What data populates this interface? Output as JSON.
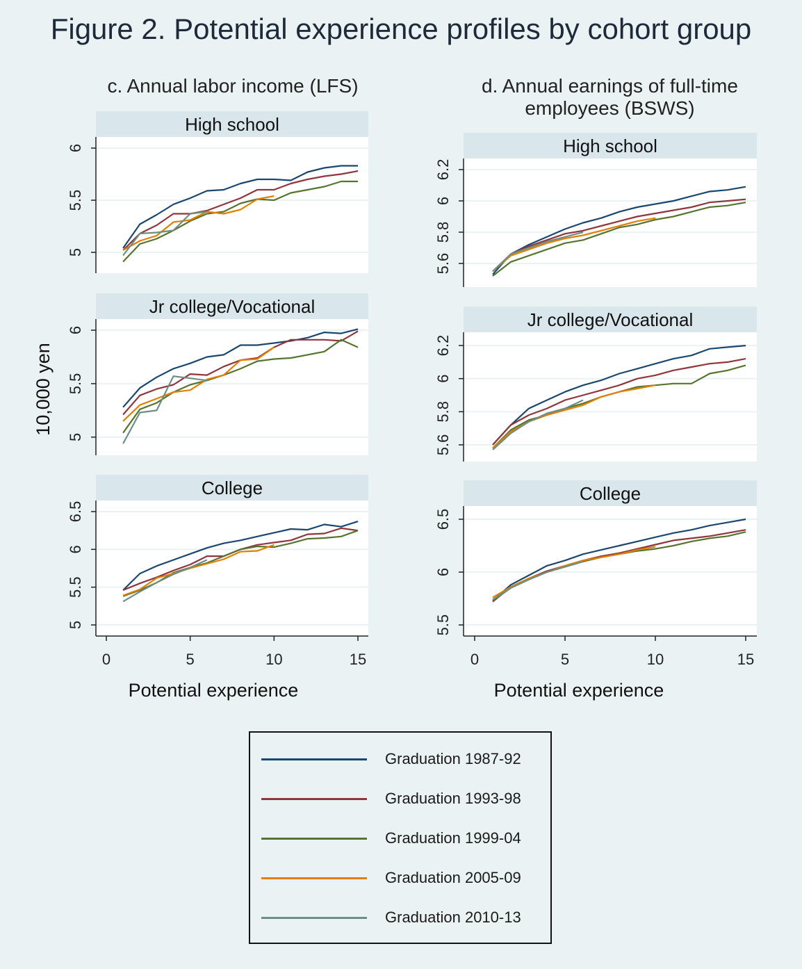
{
  "title": "Figure 2. Potential experience profiles by cohort group",
  "ylabel": "10,000 yen",
  "legend": [
    {
      "name": "Graduation 1987-92",
      "color": "#1a476f"
    },
    {
      "name": "Graduation 1993-98",
      "color": "#90353b"
    },
    {
      "name": "Graduation 1999-04",
      "color": "#55752f"
    },
    {
      "name": "Graduation 2005-09",
      "color": "#e37e00"
    },
    {
      "name": "Graduation 2010-13",
      "color": "#6e8e84"
    }
  ],
  "colors": {
    "background": "#eaf2f3",
    "strip": "#d9e6eb",
    "plot": "#ffffff",
    "grid": "#eaf2f3"
  },
  "columns": [
    {
      "title": "c. Annual labor income (LFS)",
      "xlabel": "Potential experience"
    },
    {
      "title_line1": "d. Annual earnings of full-time",
      "title_line2": "employees (BSWS)",
      "xlabel": "Potential experience"
    }
  ],
  "chart_data": [
    {
      "type": "line",
      "column": "c. Annual labor income (LFS)",
      "panel": "High school",
      "xlabel": "Potential experience",
      "ylabel": "10,000 yen",
      "xticks": [
        0,
        5,
        10,
        15
      ],
      "yticks": [
        5,
        5.5,
        6
      ],
      "ytick_labels": [
        "5",
        "5.5",
        "6"
      ],
      "series": [
        {
          "name": "Graduation 1987-92",
          "x": [
            1,
            2,
            3,
            4,
            5,
            6,
            7,
            8,
            9,
            10,
            11,
            12,
            13,
            14,
            15
          ],
          "y": [
            5.04,
            5.27,
            5.36,
            5.46,
            5.52,
            5.59,
            5.6,
            5.66,
            5.7,
            5.7,
            5.69,
            5.77,
            5.81,
            5.83,
            5.83
          ]
        },
        {
          "name": "Graduation 1993-98",
          "x": [
            1,
            2,
            3,
            4,
            5,
            6,
            7,
            8,
            9,
            10,
            11,
            12,
            13,
            14,
            15
          ],
          "y": [
            5.02,
            5.18,
            5.26,
            5.37,
            5.37,
            5.4,
            5.46,
            5.52,
            5.6,
            5.6,
            5.66,
            5.7,
            5.73,
            5.75,
            5.78
          ]
        },
        {
          "name": "Graduation 1999-04",
          "x": [
            1,
            2,
            3,
            4,
            5,
            6,
            7,
            8,
            9,
            10,
            11,
            12,
            13,
            14,
            15
          ],
          "y": [
            4.91,
            5.08,
            5.13,
            5.21,
            5.3,
            5.37,
            5.39,
            5.47,
            5.51,
            5.5,
            5.57,
            5.6,
            5.63,
            5.68,
            5.68
          ]
        },
        {
          "name": "Graduation 2005-09",
          "x": [
            1,
            2,
            3,
            4,
            5,
            6,
            7,
            8,
            9,
            10
          ],
          "y": [
            5.02,
            5.11,
            5.16,
            5.29,
            5.31,
            5.39,
            5.37,
            5.41,
            5.51,
            5.54
          ]
        },
        {
          "name": "Graduation 2010-13",
          "x": [
            1,
            2,
            3,
            4,
            5,
            6
          ],
          "y": [
            4.97,
            5.18,
            5.19,
            5.21,
            5.37,
            5.39
          ]
        }
      ]
    },
    {
      "type": "line",
      "column": "c. Annual labor income (LFS)",
      "panel": "Jr college/Vocational",
      "xlabel": "Potential experience",
      "ylabel": "10,000 yen",
      "xticks": [
        0,
        5,
        10,
        15
      ],
      "yticks": [
        5,
        5.5,
        6
      ],
      "ytick_labels": [
        "5",
        "5.5",
        "6"
      ],
      "series": [
        {
          "name": "Graduation 1987-92",
          "x": [
            1,
            2,
            3,
            4,
            5,
            6,
            7,
            8,
            9,
            10,
            11,
            12,
            13,
            14,
            15
          ],
          "y": [
            5.28,
            5.46,
            5.56,
            5.64,
            5.69,
            5.75,
            5.77,
            5.86,
            5.86,
            5.88,
            5.9,
            5.93,
            5.98,
            5.97,
            6.01
          ]
        },
        {
          "name": "Graduation 1993-98",
          "x": [
            1,
            2,
            3,
            4,
            5,
            6,
            7,
            8,
            9,
            10,
            11,
            12,
            13,
            14,
            15
          ],
          "y": [
            5.21,
            5.39,
            5.45,
            5.49,
            5.59,
            5.58,
            5.66,
            5.72,
            5.74,
            5.84,
            5.91,
            5.91,
            5.91,
            5.9,
            5.99
          ]
        },
        {
          "name": "Graduation 1999-04",
          "x": [
            1,
            2,
            3,
            4,
            5,
            6,
            7,
            8,
            9,
            10,
            11,
            12,
            13,
            14,
            15
          ],
          "y": [
            5.04,
            5.26,
            5.32,
            5.42,
            5.49,
            5.53,
            5.58,
            5.64,
            5.71,
            5.73,
            5.74,
            5.77,
            5.8,
            5.91,
            5.84
          ]
        },
        {
          "name": "Graduation 2005-09",
          "x": [
            1,
            2,
            3,
            4,
            5,
            6,
            7,
            8,
            9,
            10
          ],
          "y": [
            5.15,
            5.3,
            5.36,
            5.42,
            5.44,
            5.54,
            5.58,
            5.72,
            5.73,
            5.84
          ]
        },
        {
          "name": "Graduation 2010-13",
          "x": [
            1,
            2,
            3,
            4,
            5,
            6
          ],
          "y": [
            4.94,
            5.23,
            5.25,
            5.57,
            5.55,
            5.53
          ]
        }
      ]
    },
    {
      "type": "line",
      "column": "c. Annual labor income (LFS)",
      "panel": "College",
      "xlabel": "Potential experience",
      "ylabel": "10,000 yen",
      "xticks": [
        0,
        5,
        10,
        15
      ],
      "yticks": [
        5,
        5.5,
        6,
        6.5
      ],
      "ytick_labels": [
        "5",
        "5.5",
        "6",
        "6.5"
      ],
      "series": [
        {
          "name": "Graduation 1987-92",
          "x": [
            1,
            2,
            3,
            4,
            5,
            6,
            7,
            8,
            9,
            10,
            11,
            12,
            13,
            14,
            15
          ],
          "y": [
            5.46,
            5.68,
            5.78,
            5.86,
            5.94,
            6.02,
            6.08,
            6.12,
            6.17,
            6.22,
            6.27,
            6.26,
            6.33,
            6.3,
            6.37
          ]
        },
        {
          "name": "Graduation 1993-98",
          "x": [
            1,
            2,
            3,
            4,
            5,
            6,
            7,
            8,
            9,
            10,
            11,
            12,
            13,
            14,
            15
          ],
          "y": [
            5.46,
            5.55,
            5.63,
            5.72,
            5.8,
            5.91,
            5.91,
            6.0,
            6.06,
            6.09,
            6.12,
            6.2,
            6.21,
            6.28,
            6.25
          ]
        },
        {
          "name": "Graduation 1999-04",
          "x": [
            1,
            2,
            3,
            4,
            5,
            6,
            7,
            8,
            9,
            10,
            11,
            12,
            13,
            14,
            15
          ],
          "y": [
            5.38,
            5.46,
            5.56,
            5.69,
            5.76,
            5.82,
            5.91,
            6.0,
            6.04,
            6.03,
            6.08,
            6.14,
            6.15,
            6.17,
            6.25
          ]
        },
        {
          "name": "Graduation 2005-09",
          "x": [
            1,
            2,
            3,
            4,
            5,
            6,
            7,
            8,
            9,
            10
          ],
          "y": [
            5.39,
            5.47,
            5.62,
            5.68,
            5.75,
            5.81,
            5.87,
            5.97,
            5.98,
            6.06
          ]
        },
        {
          "name": "Graduation 2010-13",
          "x": [
            1,
            2,
            3,
            4,
            5,
            6
          ],
          "y": [
            5.31,
            5.44,
            5.56,
            5.67,
            5.76,
            5.86
          ]
        }
      ]
    },
    {
      "type": "line",
      "column": "d. Annual earnings of full-time employees (BSWS)",
      "panel": "High school",
      "xlabel": "Potential experience",
      "xticks": [
        0,
        5,
        10,
        15
      ],
      "yticks": [
        5.6,
        5.8,
        6,
        6.2
      ],
      "ytick_labels": [
        "5.6",
        "5.8",
        "6",
        "6.2"
      ],
      "series": [
        {
          "name": "Graduation 1987-92",
          "x": [
            1,
            2,
            3,
            4,
            5,
            6,
            7,
            8,
            9,
            10,
            11,
            12,
            13,
            14,
            15
          ],
          "y": [
            5.53,
            5.66,
            5.72,
            5.77,
            5.82,
            5.86,
            5.89,
            5.93,
            5.96,
            5.98,
            6.0,
            6.03,
            6.06,
            6.07,
            6.09
          ]
        },
        {
          "name": "Graduation 1993-98",
          "x": [
            1,
            2,
            3,
            4,
            5,
            6,
            7,
            8,
            9,
            10,
            11,
            12,
            13,
            14,
            15
          ],
          "y": [
            5.55,
            5.66,
            5.71,
            5.75,
            5.79,
            5.81,
            5.84,
            5.87,
            5.9,
            5.92,
            5.94,
            5.96,
            5.99,
            6.0,
            6.01
          ]
        },
        {
          "name": "Graduation 1999-04",
          "x": [
            1,
            2,
            3,
            4,
            5,
            6,
            7,
            8,
            9,
            10,
            11,
            12,
            13,
            14,
            15
          ],
          "y": [
            5.52,
            5.61,
            5.65,
            5.69,
            5.73,
            5.75,
            5.79,
            5.83,
            5.85,
            5.88,
            5.9,
            5.93,
            5.96,
            5.97,
            5.99
          ]
        },
        {
          "name": "Graduation 2005-09",
          "x": [
            1,
            2,
            3,
            4,
            5,
            6,
            7,
            8,
            9,
            10
          ],
          "y": [
            5.55,
            5.65,
            5.69,
            5.73,
            5.76,
            5.78,
            5.81,
            5.84,
            5.87,
            5.89
          ]
        },
        {
          "name": "Graduation 2010-13",
          "x": [
            1,
            2,
            3,
            4,
            5,
            6
          ],
          "y": [
            5.55,
            5.66,
            5.7,
            5.74,
            5.77,
            5.8
          ]
        }
      ]
    },
    {
      "type": "line",
      "column": "d. Annual earnings of full-time employees (BSWS)",
      "panel": "Jr college/Vocational",
      "xlabel": "Potential experience",
      "xticks": [
        0,
        5,
        10,
        15
      ],
      "yticks": [
        5.6,
        5.8,
        6,
        6.2
      ],
      "ytick_labels": [
        "5.6",
        "5.8",
        "6",
        "6.2"
      ],
      "series": [
        {
          "name": "Graduation 1987-92",
          "x": [
            1,
            2,
            3,
            4,
            5,
            6,
            7,
            8,
            9,
            10,
            11,
            12,
            13,
            14,
            15
          ],
          "y": [
            5.6,
            5.72,
            5.82,
            5.87,
            5.92,
            5.96,
            5.99,
            6.03,
            6.06,
            6.09,
            6.12,
            6.14,
            6.18,
            6.19,
            6.2
          ]
        },
        {
          "name": "Graduation 1993-98",
          "x": [
            1,
            2,
            3,
            4,
            5,
            6,
            7,
            8,
            9,
            10,
            11,
            12,
            13,
            14,
            15
          ],
          "y": [
            5.6,
            5.72,
            5.78,
            5.82,
            5.87,
            5.9,
            5.93,
            5.96,
            6.0,
            6.02,
            6.05,
            6.07,
            6.09,
            6.1,
            6.12
          ]
        },
        {
          "name": "Graduation 1999-04",
          "x": [
            1,
            2,
            3,
            4,
            5,
            6,
            7,
            8,
            9,
            10,
            11,
            12,
            13,
            14,
            15
          ],
          "y": [
            5.58,
            5.69,
            5.75,
            5.78,
            5.82,
            5.85,
            5.89,
            5.92,
            5.95,
            5.96,
            5.97,
            5.97,
            6.03,
            6.05,
            6.08
          ]
        },
        {
          "name": "Graduation 2005-09",
          "x": [
            1,
            2,
            3,
            4,
            5,
            6,
            7,
            8,
            9,
            10
          ],
          "y": [
            5.58,
            5.68,
            5.74,
            5.78,
            5.81,
            5.84,
            5.89,
            5.92,
            5.94,
            5.96
          ]
        },
        {
          "name": "Graduation 2010-13",
          "x": [
            1,
            2,
            3,
            4,
            5,
            6
          ],
          "y": [
            5.57,
            5.67,
            5.74,
            5.79,
            5.82,
            5.87
          ]
        }
      ]
    },
    {
      "type": "line",
      "column": "d. Annual earnings of full-time employees (BSWS)",
      "panel": "College",
      "xlabel": "Potential experience",
      "xticks": [
        0,
        5,
        10,
        15
      ],
      "yticks": [
        5.5,
        6,
        6.5
      ],
      "ytick_labels": [
        "5.5",
        "6",
        "6.5"
      ],
      "series": [
        {
          "name": "Graduation 1987-92",
          "x": [
            1,
            2,
            3,
            4,
            5,
            6,
            7,
            8,
            9,
            10,
            11,
            12,
            13,
            14,
            15
          ],
          "y": [
            5.73,
            5.88,
            5.97,
            6.06,
            6.11,
            6.17,
            6.21,
            6.25,
            6.29,
            6.33,
            6.37,
            6.4,
            6.44,
            6.47,
            6.5
          ]
        },
        {
          "name": "Graduation 1993-98",
          "x": [
            1,
            2,
            3,
            4,
            5,
            6,
            7,
            8,
            9,
            10,
            11,
            12,
            13,
            14,
            15
          ],
          "y": [
            5.72,
            5.86,
            5.94,
            6.01,
            6.06,
            6.11,
            6.15,
            6.18,
            6.22,
            6.26,
            6.3,
            6.32,
            6.34,
            6.37,
            6.4
          ]
        },
        {
          "name": "Graduation 1999-04",
          "x": [
            1,
            2,
            3,
            4,
            5,
            6,
            7,
            8,
            9,
            10,
            11,
            12,
            13,
            14,
            15
          ],
          "y": [
            5.73,
            5.85,
            5.93,
            6.0,
            6.05,
            6.1,
            6.14,
            6.17,
            6.2,
            6.22,
            6.25,
            6.29,
            6.32,
            6.34,
            6.38
          ]
        },
        {
          "name": "Graduation 2005-09",
          "x": [
            1,
            2,
            3,
            4,
            5,
            6,
            7,
            8,
            9,
            10
          ],
          "y": [
            5.76,
            5.86,
            5.94,
            6.0,
            6.06,
            6.11,
            6.14,
            6.17,
            6.21,
            6.24
          ]
        },
        {
          "name": "Graduation 2010-13",
          "x": [
            1,
            2,
            3,
            4,
            5,
            6
          ],
          "y": [
            5.74,
            5.85,
            5.93,
            6.0,
            6.05,
            6.1
          ]
        }
      ]
    }
  ]
}
